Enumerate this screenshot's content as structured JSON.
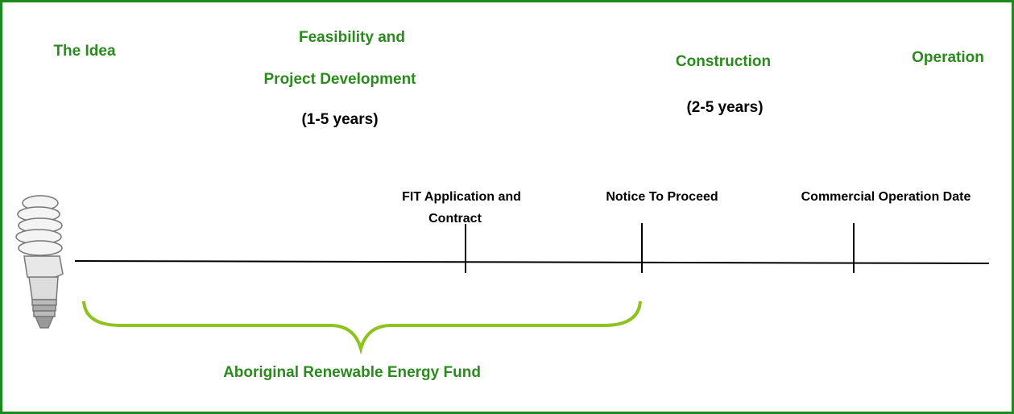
{
  "phases": [
    {
      "title": "The Idea"
    },
    {
      "title": [
        "Feasibility and",
        "Project Development"
      ],
      "duration": "(1-5 years)"
    },
    {
      "title": "Construction",
      "duration": "(2-5 years)"
    },
    {
      "title": "Operation"
    }
  ],
  "milestones": [
    {
      "label": [
        "FIT Application and",
        "Contract"
      ]
    },
    {
      "label": "Notice To Proceed"
    },
    {
      "label": "Commercial Operation Date"
    }
  ],
  "fund": {
    "label": "Aboriginal Renewable Energy Fund"
  }
}
